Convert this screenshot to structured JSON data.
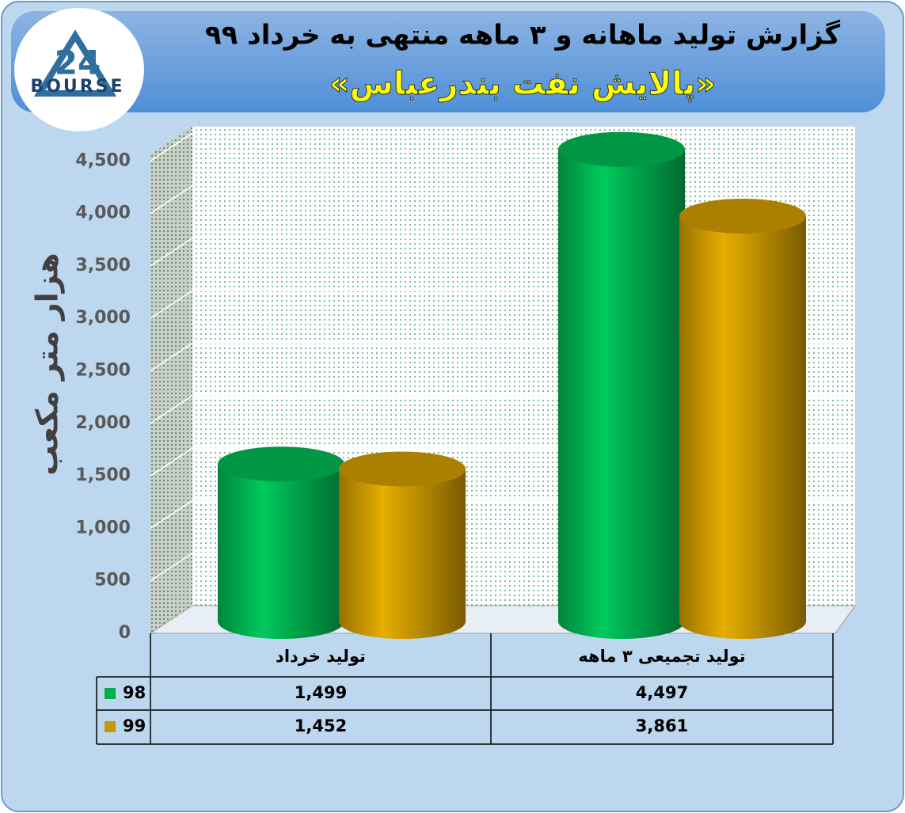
{
  "logo": {
    "number": "24",
    "name": "BOURSE"
  },
  "chart_data": {
    "type": "cylinder-bar",
    "title": "گزارش تولید ماهانه و ۳ ماهه منتهی به خرداد ۹۹",
    "subtitle": "«پالایش نفت بندرعباس»",
    "y_label": "هزار متر مکعب",
    "categories": [
      "تولید خرداد",
      "تولید تجمیعی ۳ ماهه"
    ],
    "series": [
      {
        "name": "98",
        "color": "#00b050",
        "values": [
          1499,
          4497
        ],
        "value_labels": [
          "1,499",
          "4,497"
        ]
      },
      {
        "name": "99",
        "color": "#c99700",
        "values": [
          1452,
          3861
        ],
        "value_labels": [
          "1,452",
          "3,861"
        ]
      }
    ],
    "ylim": [
      0,
      4600
    ],
    "yticks": [
      0,
      500,
      {
        "value": 1000,
        "label": "1,000"
      },
      {
        "value": 1500,
        "label": "1,500"
      },
      {
        "value": 2000,
        "label": "2,000"
      },
      {
        "value": 2500,
        "label": "2,500"
      },
      {
        "value": 3000,
        "label": "3,000"
      },
      {
        "value": 3500,
        "label": "3,500"
      },
      {
        "value": 4000,
        "label": "4,000"
      },
      {
        "value": 4500,
        "label": "4,500"
      }
    ],
    "grid": true
  }
}
